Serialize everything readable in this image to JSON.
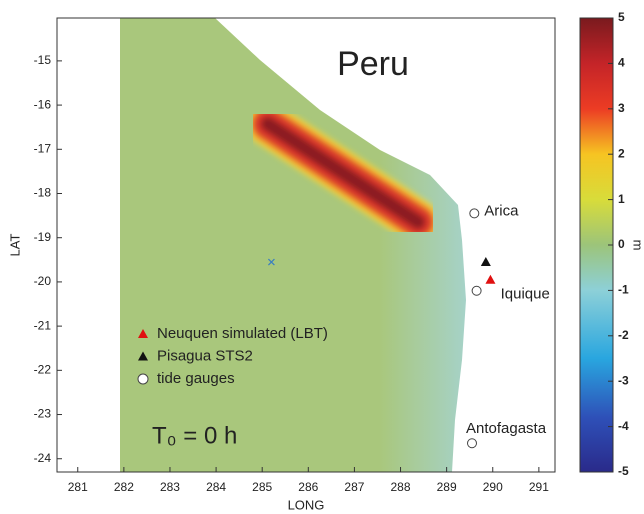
{
  "map": {
    "title": "Peru",
    "xlabel": "LONG",
    "ylabel": "LAT",
    "xlim": [
      280.55,
      291.35
    ],
    "ylim": [
      -24.3,
      -14.03
    ],
    "xticks": [
      281,
      282,
      283,
      284,
      285,
      286,
      287,
      288,
      289,
      290,
      291
    ],
    "yticks": [
      -15,
      -16,
      -17,
      -18,
      -19,
      -20,
      -21,
      -22,
      -23,
      -24
    ],
    "annotation": "T₀ = 0 h",
    "places": [
      {
        "name": "Arica",
        "lon": 289.6,
        "lat": -18.45
      },
      {
        "name": "Iquique",
        "lon": 289.65,
        "lat": -20.2
      },
      {
        "name": "Antofagasta",
        "lon": 289.55,
        "lat": -23.65
      }
    ],
    "stations": [
      {
        "lon": 289.85,
        "lat": -19.55,
        "color": "#111111"
      },
      {
        "lon": 289.95,
        "lat": -19.95,
        "color": "#e01010"
      }
    ],
    "epicenter": {
      "lon": 285.2,
      "lat": -19.55,
      "color": "#3a7fc0"
    },
    "legend": [
      {
        "label": "Neuquen simulated (LBT)",
        "marker": "triangle",
        "color": "#e01010"
      },
      {
        "label": "Pisagua  STS2",
        "marker": "triangle",
        "color": "#111111"
      },
      {
        "label": "tide gauges",
        "marker": "circle",
        "color": "#ffffff"
      }
    ],
    "colorbar": {
      "lim": [
        -5,
        5
      ],
      "ticks": [
        5,
        4,
        3,
        2,
        1,
        0,
        -1,
        -2,
        -3,
        -4,
        -5
      ],
      "label": "m"
    }
  }
}
